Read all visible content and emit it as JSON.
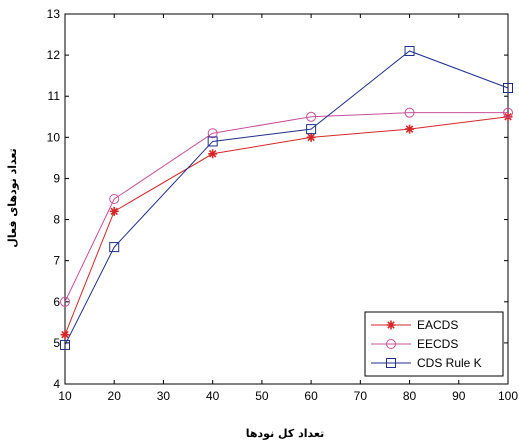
{
  "chart_data": {
    "type": "line",
    "xlabel": "تعداد کل نودها",
    "ylabel": "تعداد نودهای فعال",
    "xlim": [
      10,
      100
    ],
    "ylim": [
      4,
      13
    ],
    "xticks": [
      10,
      20,
      30,
      40,
      50,
      60,
      70,
      80,
      90,
      100
    ],
    "yticks": [
      4,
      5,
      6,
      7,
      8,
      9,
      10,
      11,
      12,
      13
    ],
    "grid": false,
    "legend_position": "bottom-right",
    "series": [
      {
        "name": "EACDS",
        "color": "#d62728",
        "marker": "star",
        "x": [
          10,
          20,
          40,
          60,
          80,
          100
        ],
        "y": [
          5.2,
          8.2,
          9.6,
          10.0,
          10.2,
          10.5
        ]
      },
      {
        "name": "EECDS",
        "color": "#c8509c",
        "marker": "circle",
        "x": [
          10,
          20,
          40,
          60,
          80,
          100
        ],
        "y": [
          6.0,
          8.5,
          10.1,
          10.5,
          10.6,
          10.6
        ]
      },
      {
        "name": "CDS Rule K",
        "color": "#1f2f8f",
        "marker": "square",
        "x": [
          10,
          20,
          40,
          60,
          80,
          100
        ],
        "y": [
          4.95,
          7.33,
          9.9,
          10.2,
          12.1,
          11.2
        ]
      }
    ]
  }
}
